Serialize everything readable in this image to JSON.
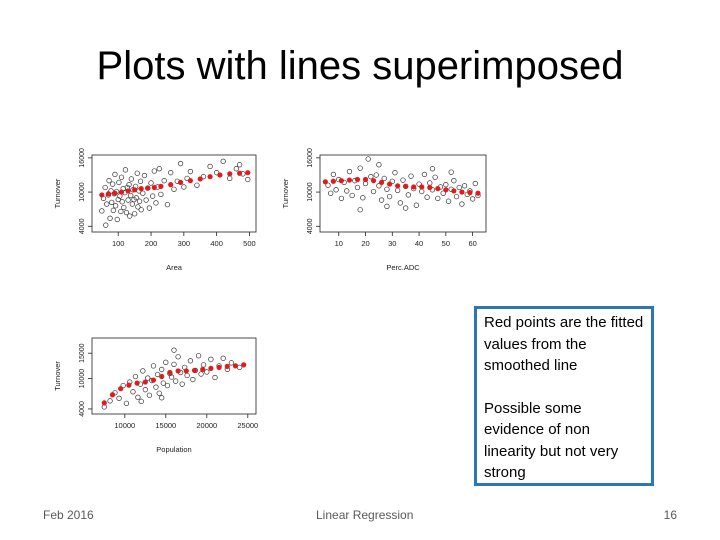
{
  "slide": {
    "title": "Plots with lines superimposed",
    "note": {
      "line1": "Red points are the fitted values from the smoothed line",
      "line2": "Possible some evidence of non linearity but not very strong"
    },
    "footer": {
      "date": "Feb 2016",
      "center": "Linear Regression",
      "page": "16"
    }
  },
  "colors": {
    "points": "#333333",
    "fitted": "#e31a1c",
    "note_border": "#2e75b6"
  },
  "chart_data": [
    {
      "type": "scatter",
      "xlabel": "Area",
      "ylabel": "Turnover",
      "xticks": [
        100,
        200,
        300,
        400,
        500
      ],
      "yticks": [
        4000,
        10000,
        16000
      ],
      "xlim": [
        20,
        520
      ],
      "ylim": [
        3000,
        16500
      ],
      "grid": false,
      "points": [
        [
          50,
          6700
        ],
        [
          55,
          8900
        ],
        [
          60,
          10800
        ],
        [
          62,
          4200
        ],
        [
          65,
          7900
        ],
        [
          70,
          9500
        ],
        [
          72,
          12000
        ],
        [
          75,
          5400
        ],
        [
          78,
          10200
        ],
        [
          80,
          8200
        ],
        [
          83,
          11400
        ],
        [
          85,
          6800
        ],
        [
          88,
          9700
        ],
        [
          90,
          13100
        ],
        [
          92,
          7600
        ],
        [
          95,
          10100
        ],
        [
          97,
          5200
        ],
        [
          100,
          8700
        ],
        [
          102,
          11700
        ],
        [
          105,
          9300
        ],
        [
          108,
          6600
        ],
        [
          110,
          12600
        ],
        [
          112,
          8300
        ],
        [
          115,
          10600
        ],
        [
          117,
          7300
        ],
        [
          120,
          9900
        ],
        [
          122,
          13900
        ],
        [
          125,
          6400
        ],
        [
          128,
          10800
        ],
        [
          130,
          8600
        ],
        [
          133,
          11300
        ],
        [
          135,
          5800
        ],
        [
          138,
          9400
        ],
        [
          140,
          12300
        ],
        [
          143,
          7900
        ],
        [
          145,
          10400
        ],
        [
          148,
          8700
        ],
        [
          150,
          6200
        ],
        [
          153,
          11000
        ],
        [
          155,
          9000
        ],
        [
          158,
          13300
        ],
        [
          160,
          7400
        ],
        [
          163,
          10200
        ],
        [
          165,
          8400
        ],
        [
          168,
          11900
        ],
        [
          170,
          6900
        ],
        [
          175,
          9800
        ],
        [
          180,
          12900
        ],
        [
          185,
          8600
        ],
        [
          190,
          10700
        ],
        [
          195,
          7200
        ],
        [
          200,
          11600
        ],
        [
          205,
          9300
        ],
        [
          210,
          13700
        ],
        [
          215,
          8100
        ],
        [
          220,
          10900
        ],
        [
          225,
          14100
        ],
        [
          230,
          9600
        ],
        [
          240,
          12000
        ],
        [
          250,
          7800
        ],
        [
          260,
          13400
        ],
        [
          270,
          10500
        ],
        [
          280,
          11900
        ],
        [
          290,
          15000
        ],
        [
          300,
          10900
        ],
        [
          310,
          12400
        ],
        [
          320,
          13600
        ],
        [
          340,
          11200
        ],
        [
          360,
          12700
        ],
        [
          380,
          14500
        ],
        [
          400,
          13400
        ],
        [
          420,
          15400
        ],
        [
          440,
          12400
        ],
        [
          460,
          14100
        ],
        [
          470,
          14800
        ],
        [
          480,
          13200
        ],
        [
          495,
          12200
        ]
      ],
      "fitted": [
        [
          50,
          9500
        ],
        [
          70,
          9700
        ],
        [
          90,
          9800
        ],
        [
          110,
          10000
        ],
        [
          130,
          10200
        ],
        [
          150,
          10400
        ],
        [
          170,
          10600
        ],
        [
          190,
          10700
        ],
        [
          210,
          10800
        ],
        [
          230,
          11000
        ],
        [
          260,
          11300
        ],
        [
          290,
          11700
        ],
        [
          320,
          12000
        ],
        [
          350,
          12300
        ],
        [
          380,
          12700
        ],
        [
          410,
          13000
        ],
        [
          440,
          13200
        ],
        [
          470,
          13300
        ],
        [
          495,
          13400
        ]
      ]
    },
    {
      "type": "scatter",
      "xlabel": "Perc.ADC",
      "ylabel": "Turnover",
      "xticks": [
        10,
        20,
        30,
        40,
        50,
        60
      ],
      "yticks": [
        4000,
        10000,
        16000
      ],
      "xlim": [
        3,
        65
      ],
      "ylim": [
        3000,
        16500
      ],
      "grid": false,
      "points": [
        [
          6,
          11200
        ],
        [
          7,
          9800
        ],
        [
          8,
          13100
        ],
        [
          9,
          10400
        ],
        [
          10,
          12200
        ],
        [
          11,
          8900
        ],
        [
          12,
          11700
        ],
        [
          13,
          10200
        ],
        [
          14,
          13600
        ],
        [
          15,
          9400
        ],
        [
          16,
          12000
        ],
        [
          17,
          10800
        ],
        [
          18,
          14200
        ],
        [
          19,
          9000
        ],
        [
          20,
          11500
        ],
        [
          21,
          15800
        ],
        [
          22,
          12700
        ],
        [
          23,
          10100
        ],
        [
          24,
          13000
        ],
        [
          25,
          11100
        ],
        [
          26,
          8600
        ],
        [
          27,
          12400
        ],
        [
          28,
          10500
        ],
        [
          29,
          9200
        ],
        [
          30,
          11900
        ],
        [
          31,
          13400
        ],
        [
          32,
          10300
        ],
        [
          33,
          8100
        ],
        [
          34,
          12100
        ],
        [
          35,
          11000
        ],
        [
          36,
          9500
        ],
        [
          37,
          12800
        ],
        [
          38,
          10600
        ],
        [
          39,
          7700
        ],
        [
          40,
          11400
        ],
        [
          41,
          10100
        ],
        [
          42,
          13100
        ],
        [
          43,
          9100
        ],
        [
          44,
          11600
        ],
        [
          45,
          10400
        ],
        [
          46,
          12600
        ],
        [
          47,
          8900
        ],
        [
          48,
          10900
        ],
        [
          49,
          9800
        ],
        [
          50,
          11300
        ],
        [
          51,
          8400
        ],
        [
          52,
          10500
        ],
        [
          53,
          12000
        ],
        [
          54,
          9200
        ],
        [
          55,
          10800
        ],
        [
          56,
          7900
        ],
        [
          57,
          11100
        ],
        [
          58,
          9600
        ],
        [
          59,
          10200
        ],
        [
          60,
          8800
        ],
        [
          61,
          11500
        ],
        [
          62,
          9400
        ],
        [
          18,
          6900
        ],
        [
          25,
          14800
        ],
        [
          35,
          7200
        ],
        [
          45,
          14100
        ],
        [
          28,
          7500
        ],
        [
          52,
          13500
        ]
      ],
      "fitted": [
        [
          5,
          11800
        ],
        [
          8,
          11900
        ],
        [
          11,
          12000
        ],
        [
          14,
          12100
        ],
        [
          17,
          12200
        ],
        [
          20,
          12200
        ],
        [
          23,
          12000
        ],
        [
          26,
          11700
        ],
        [
          29,
          11400
        ],
        [
          32,
          11100
        ],
        [
          35,
          11000
        ],
        [
          38,
          10900
        ],
        [
          41,
          10900
        ],
        [
          44,
          10800
        ],
        [
          47,
          10600
        ],
        [
          50,
          10400
        ],
        [
          53,
          10200
        ],
        [
          56,
          10000
        ],
        [
          59,
          9900
        ],
        [
          62,
          9800
        ]
      ]
    },
    {
      "type": "scatter",
      "xlabel": "Population",
      "ylabel": "Turnover",
      "xticks": [
        10000,
        15000,
        20000,
        25000
      ],
      "yticks": [
        4000,
        10000,
        15000
      ],
      "xlim": [
        6000,
        26000
      ],
      "ylim": [
        3000,
        18000
      ],
      "grid": false,
      "points": [
        [
          7500,
          4400
        ],
        [
          8200,
          5600
        ],
        [
          8800,
          7200
        ],
        [
          9300,
          6100
        ],
        [
          9800,
          8600
        ],
        [
          10200,
          5100
        ],
        [
          10600,
          9300
        ],
        [
          11000,
          7400
        ],
        [
          11300,
          10400
        ],
        [
          11600,
          6300
        ],
        [
          11900,
          8900
        ],
        [
          12200,
          11500
        ],
        [
          12500,
          7800
        ],
        [
          12800,
          10100
        ],
        [
          13000,
          6700
        ],
        [
          13300,
          9600
        ],
        [
          13500,
          12500
        ],
        [
          13800,
          8300
        ],
        [
          14000,
          10800
        ],
        [
          14200,
          7100
        ],
        [
          14500,
          11800
        ],
        [
          14700,
          9100
        ],
        [
          15000,
          13200
        ],
        [
          15200,
          8600
        ],
        [
          15500,
          11000
        ],
        [
          15700,
          10300
        ],
        [
          16000,
          12800
        ],
        [
          16200,
          9500
        ],
        [
          16500,
          14300
        ],
        [
          16800,
          11200
        ],
        [
          17000,
          8900
        ],
        [
          17300,
          12200
        ],
        [
          17600,
          10600
        ],
        [
          18000,
          13500
        ],
        [
          18300,
          9800
        ],
        [
          18600,
          11600
        ],
        [
          19000,
          14500
        ],
        [
          19300,
          10900
        ],
        [
          19600,
          12700
        ],
        [
          20000,
          11300
        ],
        [
          20500,
          13800
        ],
        [
          21000,
          10200
        ],
        [
          21500,
          12500
        ],
        [
          22000,
          14000
        ],
        [
          22500,
          11800
        ],
        [
          23000,
          13100
        ],
        [
          24000,
          12200
        ],
        [
          12000,
          5500
        ],
        [
          14500,
          6200
        ],
        [
          16000,
          15600
        ]
      ],
      "fitted": [
        [
          7500,
          5200
        ],
        [
          8500,
          6800
        ],
        [
          9500,
          8000
        ],
        [
          10500,
          8700
        ],
        [
          11500,
          9100
        ],
        [
          12500,
          9300
        ],
        [
          13500,
          9700
        ],
        [
          14500,
          10400
        ],
        [
          15500,
          11200
        ],
        [
          16500,
          11500
        ],
        [
          17500,
          11500
        ],
        [
          18500,
          11600
        ],
        [
          19500,
          11800
        ],
        [
          20500,
          12000
        ],
        [
          21500,
          12200
        ],
        [
          22500,
          12400
        ],
        [
          23500,
          12500
        ],
        [
          24500,
          12700
        ]
      ]
    }
  ]
}
